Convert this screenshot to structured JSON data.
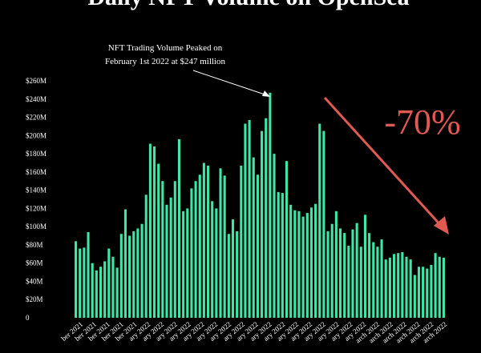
{
  "chart_data": {
    "type": "bar",
    "title": "Daily NFT Volume on OpenSea",
    "ylabel": "",
    "xlabel": "",
    "ylim": [
      0,
      260
    ],
    "yticks": [
      {
        "value": 0,
        "label": "0"
      },
      {
        "value": 20,
        "label": "$20M"
      },
      {
        "value": 40,
        "label": "$40M"
      },
      {
        "value": 60,
        "label": "$60M"
      },
      {
        "value": 80,
        "label": "$80M"
      },
      {
        "value": 100,
        "label": "$100M"
      },
      {
        "value": 120,
        "label": "$120M"
      },
      {
        "value": 140,
        "label": "$140M"
      },
      {
        "value": 160,
        "label": "$160M"
      },
      {
        "value": 180,
        "label": "$180M"
      },
      {
        "value": 200,
        "label": "$200M"
      },
      {
        "value": 220,
        "label": "$220M"
      },
      {
        "value": 240,
        "label": "$240M"
      },
      {
        "value": 260,
        "label": "$260M"
      }
    ],
    "xtick_labels": [
      "ber 2021",
      "ber 2021",
      "ber 2021",
      "ber 2021",
      "ber 2021",
      "ary 2022",
      "ary 2022",
      "ary 2022",
      "ary 2022",
      "ary 2022",
      "ary 2022",
      "ary 2022",
      "ary 2022",
      "ary 2022",
      "ary 2022",
      "ary 2022",
      "ary 2022",
      "ary 2022",
      "ary 2022",
      "ary 2022",
      "ary 2022",
      "ary 2022",
      "arch 2022",
      "arch 2022",
      "arch 2022",
      "arch 2022",
      "arch 2022",
      "arch 2022"
    ],
    "values": [
      84,
      76,
      77,
      94,
      60,
      52,
      56,
      62,
      76,
      67,
      55,
      92,
      119,
      90,
      95,
      98,
      103,
      135,
      191,
      188,
      169,
      150,
      124,
      132,
      150,
      196,
      117,
      120,
      142,
      150,
      157,
      170,
      167,
      128,
      120,
      164,
      156,
      92,
      108,
      95,
      167,
      213,
      217,
      176,
      157,
      205,
      219,
      247,
      180,
      138,
      137,
      172,
      124,
      118,
      117,
      111,
      115,
      121,
      125,
      213,
      205,
      95,
      103,
      117,
      98,
      93,
      79,
      97,
      104,
      78,
      113,
      93,
      83,
      78,
      86,
      64,
      66,
      70,
      71,
      72,
      67,
      64,
      47,
      56,
      56,
      54,
      58,
      71,
      67,
      66
    ],
    "bar_color": "#3ee6a8",
    "grid": false,
    "annotations": [
      {
        "text": "NFT Trading Volume Peaked on",
        "text2": "February 1st 2022 at $247 million"
      },
      {
        "text": "-70%"
      }
    ],
    "arrow_color": "#e05a52"
  }
}
